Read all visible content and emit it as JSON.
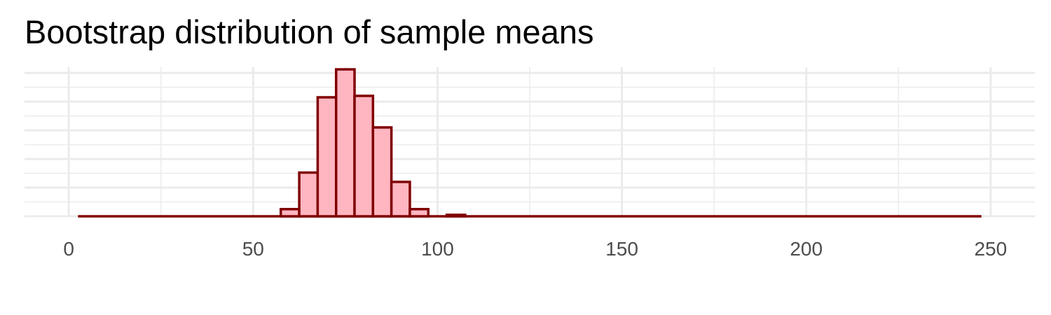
{
  "chart_data": {
    "type": "bar",
    "title": "Bootstrap distribution of sample means",
    "xlabel": "",
    "ylabel": "",
    "xlim": [
      -12,
      262
    ],
    "ylim": [
      0,
      208
    ],
    "grid": true,
    "legend": "none",
    "x_ticks": [
      0,
      50,
      100,
      150,
      200,
      250
    ],
    "x_tick_labels": [
      "0",
      "50",
      "100",
      "150",
      "200",
      "250"
    ],
    "y_ticks": [
      0,
      40,
      80,
      120,
      160,
      200
    ],
    "y_tick_labels": [],
    "bin_width": 5,
    "bin_start": 2.5,
    "bin_end": 247.5,
    "bins": [
      {
        "x": 60,
        "count": 10
      },
      {
        "x": 65,
        "count": 61
      },
      {
        "x": 70,
        "count": 166
      },
      {
        "x": 75,
        "count": 205
      },
      {
        "x": 80,
        "count": 168
      },
      {
        "x": 85,
        "count": 124
      },
      {
        "x": 90,
        "count": 48
      },
      {
        "x": 95,
        "count": 10
      },
      {
        "x": 105,
        "count": 2
      }
    ],
    "colors": {
      "fill": "#ffb6c1",
      "outline": "#800000",
      "grid": "#ebebeb"
    }
  }
}
